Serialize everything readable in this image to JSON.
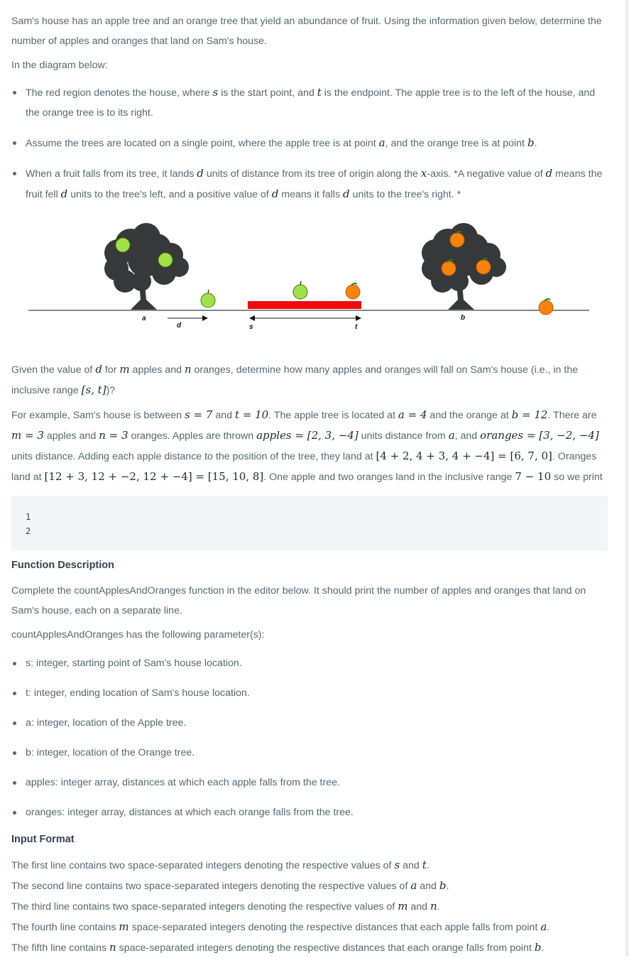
{
  "intro": {
    "p1": "Sam's house has an apple tree and an orange tree that yield an abundance of fruit. Using the information given below, determine the number of apples and oranges that land on Sam's house.",
    "p2": "In the diagram below:"
  },
  "bullets": {
    "b1_a": "The red region denotes the house, where ",
    "b1_b": " is the start point, and ",
    "b1_c": " is the endpoint. The apple tree is to the left of the house, and the orange tree is to its right.",
    "b2_a": "Assume the trees are located on a single point, where the apple tree is at point ",
    "b2_b": ", and the orange tree is at point ",
    "b2_c": ".",
    "b3_a": "When a fruit falls from its tree, it lands ",
    "b3_b": " units of distance from its tree of origin along the ",
    "b3_c": "-axis. *A negative value of ",
    "b3_d": " means the fruit fell ",
    "b3_e": " units to the tree's left, and a positive value of ",
    "b3_f": " means it falls ",
    "b3_g": " units to the tree's right. *"
  },
  "vars": {
    "s": "s",
    "t": "t",
    "a": "a",
    "b": "b",
    "d": "d",
    "x": "x",
    "m": "m",
    "n": "n"
  },
  "diagram": {
    "label_a": "a",
    "label_d": "d",
    "label_s": "s",
    "label_t": "t",
    "label_b": "b",
    "house_color": "#ee0b0b",
    "tree_color": "#37383a",
    "apple_color": "#a2e04a",
    "orange_color": "#f7830f"
  },
  "given": {
    "a": "Given the value of ",
    "b": " for ",
    "c": " apples and ",
    "d": " oranges, determine how many apples and oranges will fall on Sam's house (i.e., in the inclusive range ",
    "range": "[s, t]",
    "e": ")?"
  },
  "example": {
    "a": "For example, Sam's house is between ",
    "s_eq": "s = 7",
    "b": " and ",
    "t_eq": "t = 10",
    "c": ". The apple tree is located at ",
    "a_eq": "a = 4",
    "d": " and the orange at ",
    "b_eq": "b = 12",
    "e": ". There are ",
    "m_eq": "m = 3",
    "f": " apples and ",
    "n_eq": "n = 3",
    "g": " oranges. Apples are thrown ",
    "apples_eq": "apples = [2, 3, −4]",
    "h": " units distance from ",
    "i": ", and ",
    "oranges_eq": "oranges = [3, −2, −4]",
    "j": " units distance. Adding each apple distance to the position of the tree, they land at ",
    "apple_sum": "[4 + 2, 4 + 3, 4 + −4] = [6, 7, 0]",
    "k": ". Oranges land at ",
    "orange_sum": "[12 + 3, 12 + −2, 12 + −4] = [15, 10, 8]",
    "l": ". One apple and two oranges land in the inclusive range ",
    "range": "7 − 10",
    "m": " so we print"
  },
  "output_lines": [
    "1",
    "2"
  ],
  "function_description": {
    "heading": "Function Description",
    "p1": "Complete the countApplesAndOranges function in the editor below. It should print the number of apples and oranges that land on Sam's house, each on a separate line.",
    "p2": "countApplesAndOranges has the following parameter(s):",
    "params": [
      "s: integer, starting point of Sam's house location.",
      "t: integer, ending location of Sam's house location.",
      "a: integer, location of the Apple tree.",
      "b: integer, location of the Orange tree.",
      "apples: integer array, distances at which each apple falls from the tree.",
      "oranges: integer array, distances at which each orange falls from the tree."
    ]
  },
  "input_format": {
    "heading": "Input Format",
    "l1_a": "The first line contains two space-separated integers denoting the respective values of ",
    "l2_a": "The second line contains two space-separated integers denoting the respective values of ",
    "l3_a": "The third line contains two space-separated integers denoting the respective values of ",
    "and": " and ",
    "dot": ".",
    "l4_a": "The fourth line contains ",
    "l4_b": " space-separated integers denoting the respective distances that each apple falls from point ",
    "l5_a": "The fifth line contains ",
    "l5_b": " space-separated integers denoting the respective distances that each orange falls from point "
  }
}
